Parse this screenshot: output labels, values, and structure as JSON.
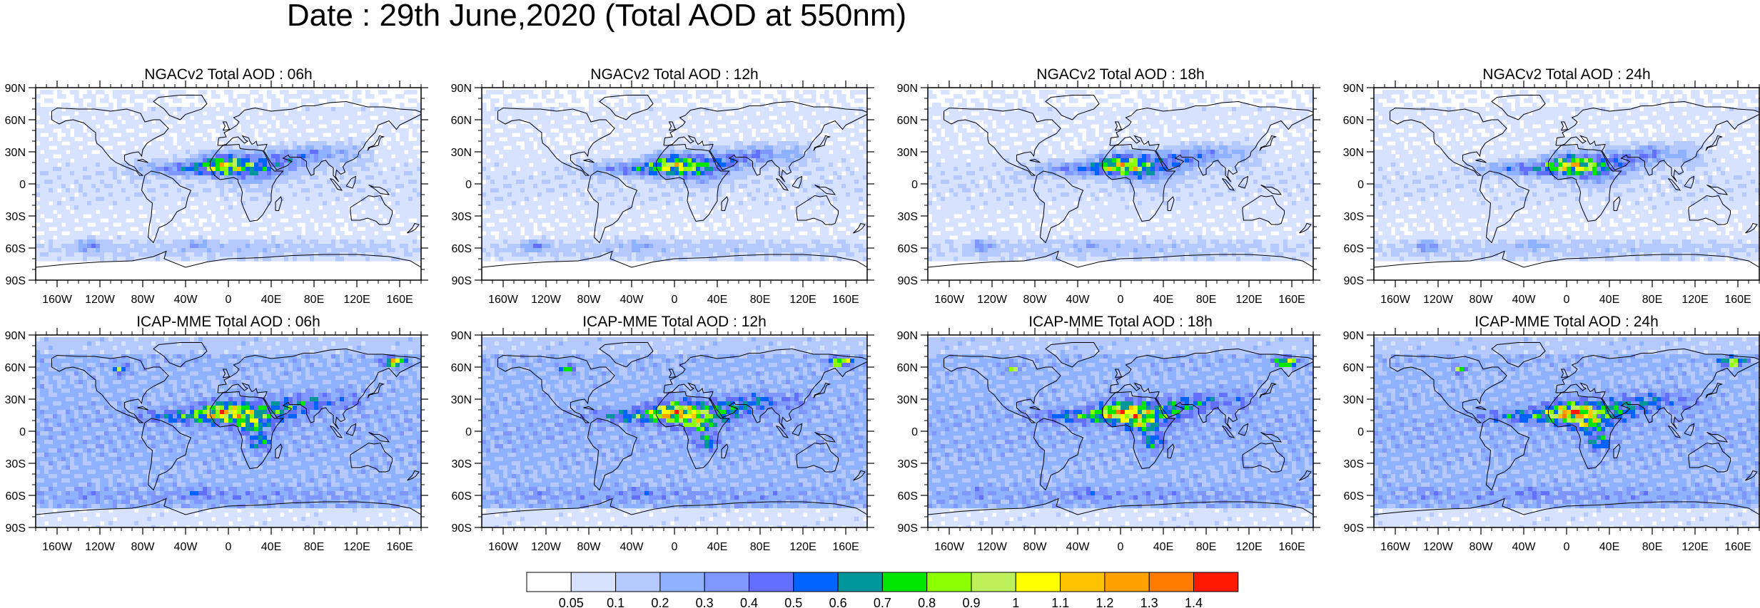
{
  "title": "Date : 29th June,2020 (Total AOD at 550nm)",
  "panels": [
    {
      "title": "NGACv2 Total AOD : 06h",
      "row": 0,
      "col": 0
    },
    {
      "title": "NGACv2 Total AOD : 12h",
      "row": 0,
      "col": 1
    },
    {
      "title": "NGACv2 Total AOD : 18h",
      "row": 0,
      "col": 2
    },
    {
      "title": "NGACv2 Total AOD : 24h",
      "row": 0,
      "col": 3
    },
    {
      "title": "ICAP-MME Total AOD : 06h",
      "row": 1,
      "col": 0
    },
    {
      "title": "ICAP-MME Total AOD : 12h",
      "row": 1,
      "col": 1
    },
    {
      "title": "ICAP-MME Total AOD : 18h",
      "row": 1,
      "col": 2
    },
    {
      "title": "ICAP-MME Total AOD : 24h",
      "row": 1,
      "col": 3
    }
  ],
  "lon_ticks": [
    "160W",
    "120W",
    "80W",
    "40W",
    "0",
    "40E",
    "80E",
    "120E",
    "160E"
  ],
  "lat_ticks": [
    "90N",
    "60N",
    "30N",
    "0",
    "30S",
    "60S",
    "90S"
  ],
  "colorbar": {
    "labels": [
      "0.05",
      "0.1",
      "0.2",
      "0.3",
      "0.4",
      "0.5",
      "0.6",
      "0.7",
      "0.8",
      "0.9",
      "1",
      "1.1",
      "1.2",
      "1.3",
      "1.4"
    ],
    "colors": [
      "#ffffff",
      "#d6e2ff",
      "#b5c9ff",
      "#8eb2ff",
      "#7f96ff",
      "#6370ff",
      "#0063ff",
      "#00969a",
      "#00e600",
      "#8cff00",
      "#bdf05a",
      "#ffff00",
      "#ffc400",
      "#ffa100",
      "#ff7c00",
      "#ff1900"
    ]
  }
}
